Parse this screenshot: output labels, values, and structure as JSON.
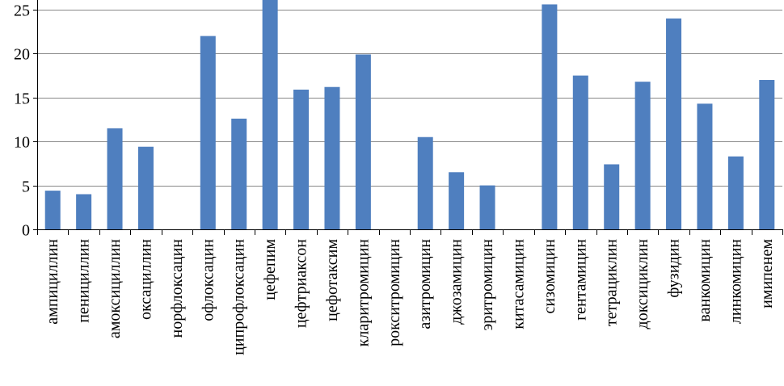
{
  "chart_data": {
    "type": "bar",
    "categories": [
      "ампициллин",
      "пенициллин",
      "амоксициллин",
      "оксациллин",
      "норфлоксацин",
      "офлоксацин",
      "ципрофлоксацин",
      "цефепим",
      "цефтриаксон",
      "цефотаксим",
      "кларитромицин",
      "рокситромицин",
      "азитромицин",
      "джозамицин",
      "эритромицин",
      "китасамицин",
      "сизомицин",
      "гентамицин",
      "тетрациклин",
      "доксициклин",
      "фузидин",
      "ванкомицин",
      "линкомицин",
      "имипенем"
    ],
    "values": [
      4.4,
      4.0,
      11.5,
      9.4,
      0,
      22.0,
      12.6,
      26.5,
      15.9,
      16.2,
      19.9,
      0,
      10.5,
      6.5,
      5.0,
      0,
      25.6,
      17.5,
      7.4,
      16.8,
      24.0,
      14.3,
      8.3,
      17.0
    ],
    "yticks": [
      "0",
      "5",
      "10",
      "15",
      "20",
      "25"
    ],
    "ylim": [
      0,
      26.1
    ],
    "grid": true,
    "colors": {
      "bar": "#4f7fbf",
      "grid": "#888888",
      "axis": "#000000"
    }
  }
}
